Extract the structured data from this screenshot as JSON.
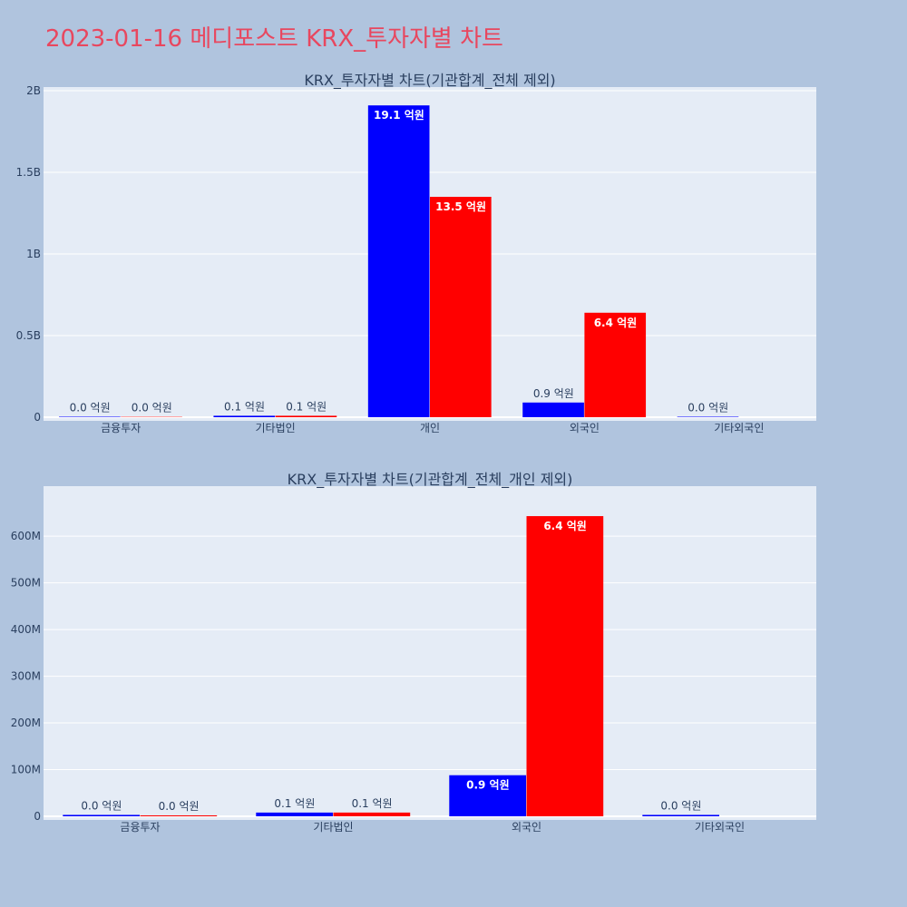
{
  "header": {
    "title": "2023-01-16 메디포스트 KRX_투자자별 차트"
  },
  "colors": {
    "background": "#b0c4de",
    "plot_bg": "#e5ecf6",
    "title": "#e8475f",
    "text": "#2a3f5f"
  },
  "chart_data": [
    {
      "type": "bar",
      "title": "KRX_투자자별 차트(기관합계_전체 제외)",
      "categories": [
        "금융투자",
        "기타법인",
        "개인",
        "외국인",
        "기타외국인"
      ],
      "ylim": [
        0,
        2000000000
      ],
      "yticks": [
        {
          "value": 0,
          "label": "0"
        },
        {
          "value": 500000000,
          "label": "0.5B"
        },
        {
          "value": 1000000000,
          "label": "1B"
        },
        {
          "value": 1500000000,
          "label": "1.5B"
        },
        {
          "value": 2000000000,
          "label": "2B"
        }
      ],
      "series": [
        {
          "color": "#0000ff",
          "values": [
            3000000,
            9000000,
            1910000000,
            90000000,
            3000000
          ],
          "labels": [
            "0.0 억원",
            "0.1 억원",
            "19.1 억원",
            "0.9 억원",
            "0.0 억원"
          ]
        },
        {
          "color": "#ff0000",
          "values": [
            2000000,
            9000000,
            1350000000,
            640000000,
            0
          ],
          "labels": [
            "0.0 억원",
            "0.1 억원",
            "13.5 억원",
            "6.4 억원",
            ""
          ]
        }
      ],
      "grid": true
    },
    {
      "type": "bar",
      "title": "KRX_투자자별 차트(기관합계_전체_개인 제외)",
      "categories": [
        "금융투자",
        "기타법인",
        "외국인",
        "기타외국인"
      ],
      "ylim": [
        0,
        680000000
      ],
      "yticks": [
        {
          "value": 0,
          "label": "0"
        },
        {
          "value": 100000000,
          "label": "100M"
        },
        {
          "value": 200000000,
          "label": "200M"
        },
        {
          "value": 300000000,
          "label": "300M"
        },
        {
          "value": 400000000,
          "label": "400M"
        },
        {
          "value": 500000000,
          "label": "500M"
        },
        {
          "value": 600000000,
          "label": "600M"
        }
      ],
      "series": [
        {
          "color": "#0000ff",
          "values": [
            3000000,
            8000000,
            88000000,
            3000000
          ],
          "labels": [
            "0.0 억원",
            "0.1 억원",
            "0.9 억원",
            "0.0 억원"
          ]
        },
        {
          "color": "#ff0000",
          "values": [
            2000000,
            8000000,
            643000000,
            0
          ],
          "labels": [
            "0.0 억원",
            "0.1 억원",
            "6.4 억원",
            ""
          ]
        }
      ],
      "grid": true
    }
  ]
}
